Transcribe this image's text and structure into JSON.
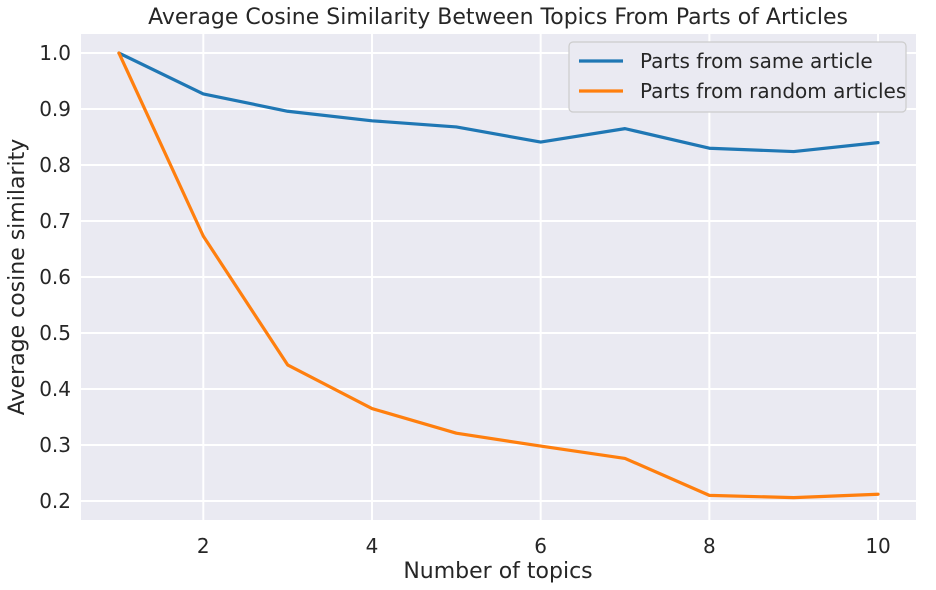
{
  "chart_data": {
    "type": "line",
    "title": "Average Cosine Similarity Between Topics From Parts of Articles",
    "xlabel": "Number of topics",
    "ylabel": "Average cosine similarity",
    "x": [
      1,
      2,
      3,
      4,
      5,
      6,
      7,
      8,
      9,
      10
    ],
    "xlim": [
      0.55,
      10.45
    ],
    "ylim": [
      0.166,
      1.034
    ],
    "xticks": [
      2,
      4,
      6,
      8,
      10
    ],
    "yticks": [
      0.2,
      0.3,
      0.4,
      0.5,
      0.6,
      0.7,
      0.8,
      0.9,
      1.0
    ],
    "yticklabels": [
      "0.2",
      "0.3",
      "0.4",
      "0.5",
      "0.6",
      "0.7",
      "0.8",
      "0.9",
      "1.0"
    ],
    "grid": true,
    "legend_position": "top-right",
    "series": [
      {
        "name": "Parts from same article",
        "color": "#1f77b4",
        "values": [
          1.0,
          0.927,
          0.896,
          0.879,
          0.868,
          0.841,
          0.865,
          0.83,
          0.824,
          0.84
        ]
      },
      {
        "name": "Parts from random articles",
        "color": "#ff7f0e",
        "values": [
          1.0,
          0.673,
          0.443,
          0.365,
          0.321,
          0.298,
          0.276,
          0.21,
          0.206,
          0.212
        ]
      }
    ],
    "colors": {
      "plot_background": "#eaeaf2",
      "grid": "#ffffff",
      "legend_border": "#cccccc"
    }
  }
}
